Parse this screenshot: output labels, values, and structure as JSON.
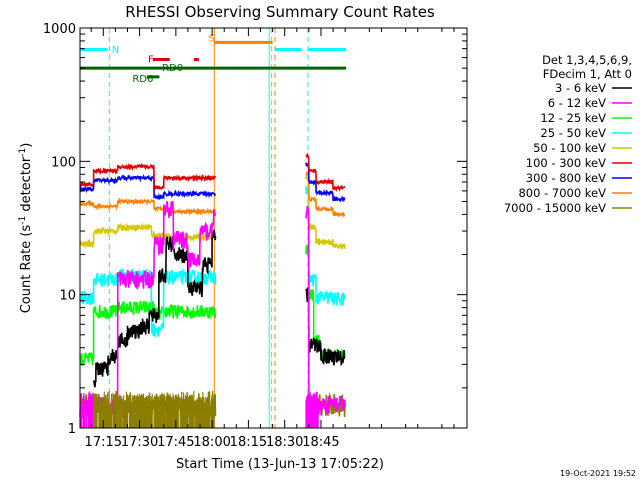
{
  "chart_data": {
    "type": "line",
    "title": "RHESSI Observing Summary Count Rates",
    "xlabel": "Start Time (13-Jun-13 17:05:22)",
    "ylabel_main": "Count Rate (s",
    "ylabel_sup1": "-1",
    "ylabel_mid": " detector",
    "ylabel_sup2": "-1",
    "ylabel_end": ")",
    "yscale": "log",
    "ylim": [
      1,
      1000
    ],
    "xlim_min": [
      5.37,
      165.37
    ],
    "ytick_values": [
      1,
      10,
      100,
      1000
    ],
    "ytick_labels": [
      "1",
      "10",
      "100",
      "1000"
    ],
    "xtick_values": [
      15,
      30,
      45,
      60,
      75,
      90,
      105
    ],
    "xtick_labels": [
      "17:15",
      "17:30",
      "17:45",
      "18:00",
      "18:15",
      "18:30",
      "18:45"
    ],
    "stamp": "19-Oct-2021 19:52",
    "legend_header": [
      "Det 1,3,4,5,6,9,",
      "FDecim 1, Att 0"
    ],
    "series": [
      {
        "name": "3 - 6 keV",
        "color": "#000000"
      },
      {
        "name": "6 - 12 keV",
        "color": "#ff00ff"
      },
      {
        "name": "12 - 25 keV",
        "color": "#00ff00"
      },
      {
        "name": "25 - 50 keV",
        "color": "#00ffff"
      },
      {
        "name": "50 - 100 keV",
        "color": "#d4c800"
      },
      {
        "name": "100 - 300 keV",
        "color": "#e00000"
      },
      {
        "name": "300 - 800 keV",
        "color": "#0000ff"
      },
      {
        "name": "800 - 7000 keV",
        "color": "#ff8000"
      },
      {
        "name": "7000 - 15000 keV",
        "color": "#8b7d00"
      }
    ],
    "flags": [
      {
        "label": "N",
        "color": "#00ffff",
        "y": 690
      },
      {
        "label": "F",
        "color": "#e00000",
        "y": 580
      },
      {
        "label": "RD0",
        "color": "#006400",
        "y": 500
      },
      {
        "label": "RD6",
        "color": "#006400",
        "y": 430
      },
      {
        "label": "S",
        "color": "#ff8000",
        "y": 780
      }
    ]
  }
}
